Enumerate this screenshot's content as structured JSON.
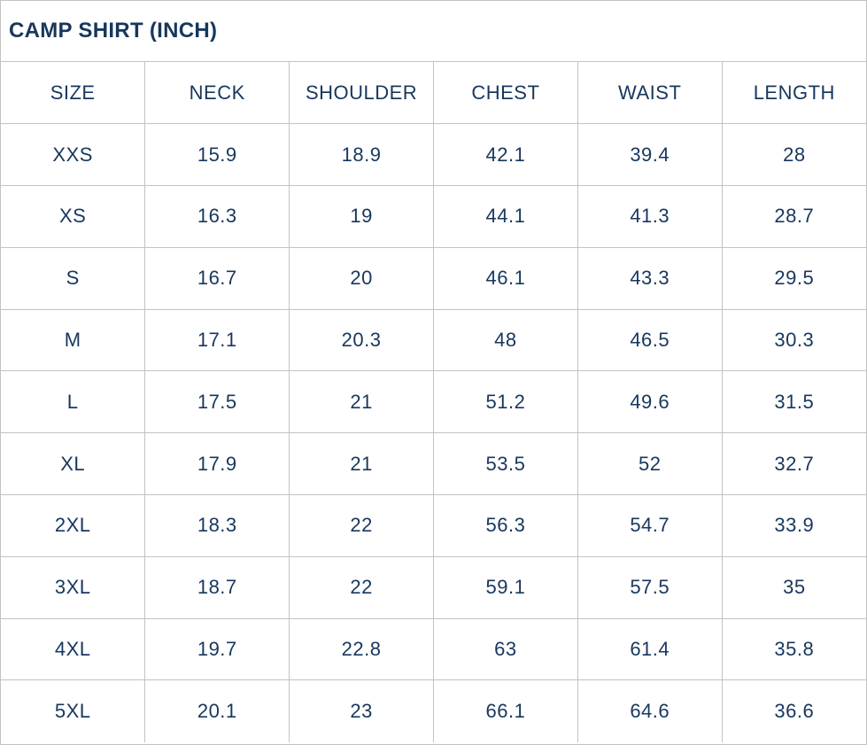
{
  "title": "CAMP SHIRT (INCH)",
  "colors": {
    "text": "#17375d",
    "border": "#c3c3c3",
    "background": "#ffffff"
  },
  "chart_data": {
    "type": "table",
    "title": "CAMP SHIRT (INCH)",
    "columns": [
      "SIZE",
      "NECK",
      "SHOULDER",
      "CHEST",
      "WAIST",
      "LENGTH"
    ],
    "rows": [
      [
        "XXS",
        "15.9",
        "18.9",
        "42.1",
        "39.4",
        "28"
      ],
      [
        "XS",
        "16.3",
        "19",
        "44.1",
        "41.3",
        "28.7"
      ],
      [
        "S",
        "16.7",
        "20",
        "46.1",
        "43.3",
        "29.5"
      ],
      [
        "M",
        "17.1",
        "20.3",
        "48",
        "46.5",
        "30.3"
      ],
      [
        "L",
        "17.5",
        "21",
        "51.2",
        "49.6",
        "31.5"
      ],
      [
        "XL",
        "17.9",
        "21",
        "53.5",
        "52",
        "32.7"
      ],
      [
        "2XL",
        "18.3",
        "22",
        "56.3",
        "54.7",
        "33.9"
      ],
      [
        "3XL",
        "18.7",
        "22",
        "59.1",
        "57.5",
        "35"
      ],
      [
        "4XL",
        "19.7",
        "22.8",
        "63",
        "61.4",
        "35.8"
      ],
      [
        "5XL",
        "20.1",
        "23",
        "66.1",
        "64.6",
        "36.6"
      ]
    ]
  }
}
